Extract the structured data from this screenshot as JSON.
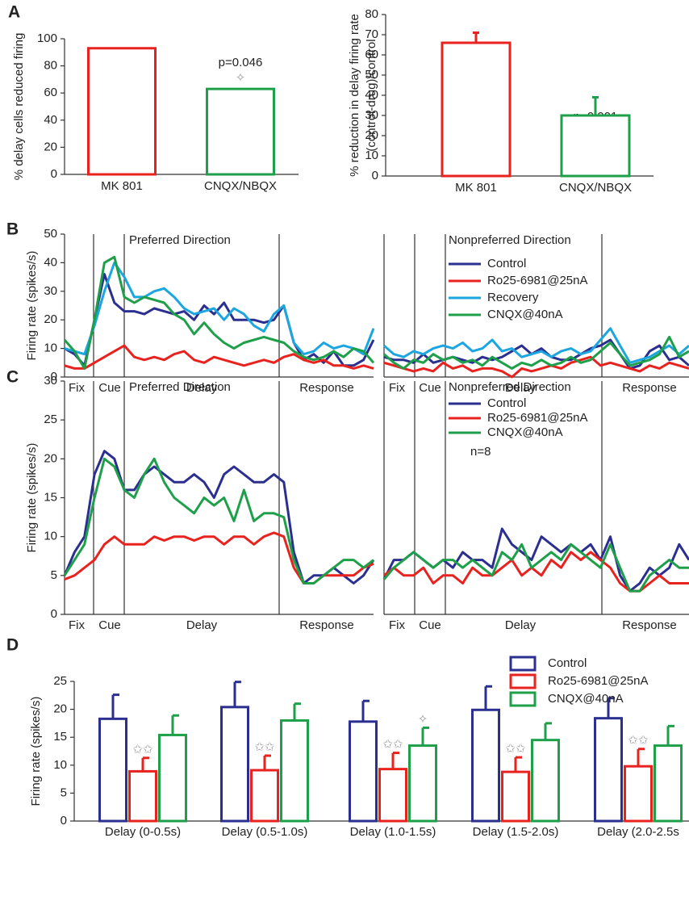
{
  "chart_data": [
    {
      "type": "bar",
      "panel_label": "A",
      "ylabel": [
        "% delay cells reduced firing"
      ],
      "categories": [
        "MK 801",
        "CNQX/NBQX"
      ],
      "values": [
        93,
        63
      ],
      "colors": [
        "#e8221e",
        "#1ea04a"
      ],
      "ylim": [
        0,
        100
      ],
      "yticks": [
        0,
        20,
        40,
        60,
        80,
        100
      ],
      "annotations": [
        "p=0.046",
        "✧"
      ]
    },
    {
      "type": "bar",
      "ylabel": [
        "% reduction in delay firing rate",
        "(control-drug)/control"
      ],
      "categories": [
        "MK 801",
        "CNQX/NBQX"
      ],
      "values": [
        66,
        30
      ],
      "errors": [
        5,
        9
      ],
      "colors": [
        "#e8221e",
        "#1ea04a"
      ],
      "ylim": [
        0,
        80
      ],
      "yticks": [
        0,
        10,
        20,
        30,
        40,
        50,
        60,
        70,
        80
      ],
      "annotations": [
        "p=0.001",
        "✧✧✧"
      ]
    },
    {
      "type": "line",
      "panel_label": "B",
      "title": "Preferred Direction",
      "ylabel": [
        "Firing rate (spikes/s)"
      ],
      "epochs": [
        "Fix",
        "Cue",
        "Delay",
        "Response"
      ],
      "ylim": [
        0,
        50
      ],
      "yticks": [
        0,
        10,
        20,
        30,
        40,
        50
      ],
      "series": [
        {
          "color": "#2b2f8f",
          "values": [
            10,
            8,
            4,
            20,
            36,
            26,
            23,
            23,
            22,
            24,
            23,
            22,
            23,
            20,
            25,
            22,
            26,
            20,
            20,
            20,
            19,
            20,
            25,
            12,
            6,
            8,
            5,
            9,
            4,
            4,
            6,
            13
          ]
        },
        {
          "color": "#e8221e",
          "values": [
            4,
            3,
            3,
            5,
            7,
            9,
            11,
            7,
            6,
            7,
            6,
            8,
            9,
            6,
            5,
            7,
            6,
            5,
            4,
            5,
            6,
            5,
            7,
            8,
            6,
            5,
            6,
            4,
            4,
            3,
            4,
            3
          ]
        },
        {
          "color": "#1ca6e0",
          "values": [
            10,
            9,
            8,
            18,
            30,
            40,
            35,
            28,
            28,
            30,
            31,
            28,
            24,
            22,
            23,
            24,
            20,
            24,
            22,
            18,
            16,
            22,
            25,
            12,
            8,
            9,
            12,
            10,
            11,
            10,
            8,
            17
          ]
        },
        {
          "color": "#1ea04a",
          "values": [
            13,
            9,
            3,
            20,
            40,
            42,
            28,
            26,
            28,
            27,
            26,
            22,
            20,
            15,
            19,
            15,
            12,
            10,
            12,
            13,
            14,
            13,
            12,
            9,
            7,
            6,
            7,
            9,
            7,
            10,
            9,
            5
          ]
        }
      ]
    },
    {
      "type": "line",
      "title": "Nonpreferred Direction",
      "epochs": [
        "Fix",
        "Cue",
        "Delay",
        "Response"
      ],
      "ylim": [
        0,
        50
      ],
      "series": [
        {
          "name": "Control",
          "color": "#2b2f8f",
          "values": [
            7,
            6,
            6,
            5,
            8,
            5,
            6,
            7,
            6,
            5,
            7,
            6,
            7,
            9,
            11,
            8,
            10,
            7,
            6,
            6,
            8,
            10,
            11,
            13,
            8,
            3,
            4,
            9,
            11,
            6,
            7,
            4
          ]
        },
        {
          "name": "Ro25-6981@25nA",
          "color": "#e8221e",
          "values": [
            5,
            4,
            3,
            2,
            3,
            2,
            5,
            3,
            4,
            2,
            3,
            3,
            2,
            0,
            3,
            2,
            3,
            4,
            3,
            5,
            6,
            7,
            4,
            5,
            4,
            3,
            2,
            4,
            3,
            5,
            4,
            3
          ]
        },
        {
          "name": "Recovery",
          "color": "#1ca6e0",
          "values": [
            11,
            8,
            7,
            9,
            8,
            10,
            11,
            10,
            12,
            9,
            10,
            13,
            9,
            10,
            7,
            8,
            9,
            7,
            9,
            10,
            8,
            9,
            13,
            17,
            11,
            5,
            6,
            7,
            9,
            11,
            8,
            11
          ]
        },
        {
          "name": "CNQX@40nA",
          "color": "#1ea04a",
          "values": [
            8,
            5,
            3,
            6,
            5,
            8,
            6,
            7,
            5,
            6,
            4,
            7,
            5,
            3,
            5,
            4,
            6,
            4,
            5,
            7,
            5,
            6,
            9,
            12,
            8,
            4,
            5,
            6,
            8,
            14,
            7,
            9
          ]
        }
      ]
    },
    {
      "type": "line",
      "panel_label": "C",
      "title": "Preferred Direction",
      "ylabel": [
        "Firing rate (spikes/s)"
      ],
      "epochs": [
        "Fix",
        "Cue",
        "Delay",
        "Response"
      ],
      "ylim": [
        0,
        30
      ],
      "yticks": [
        0,
        5,
        10,
        15,
        20,
        25,
        30
      ],
      "series": [
        {
          "color": "#2b2f8f",
          "values": [
            5,
            8,
            10,
            18,
            21,
            20,
            16,
            16,
            18,
            19,
            18,
            17,
            17,
            18,
            17,
            15,
            18,
            19,
            18,
            17,
            17,
            18,
            17,
            8,
            4,
            5,
            5,
            6,
            5,
            4,
            5,
            7
          ]
        },
        {
          "color": "#e8221e",
          "values": [
            4.5,
            5,
            6,
            7,
            9,
            10,
            9,
            9,
            9,
            10,
            9.5,
            10,
            10,
            9.5,
            10,
            10,
            9,
            10,
            10,
            9,
            10,
            10.5,
            10,
            6,
            4,
            4,
            5,
            5,
            5,
            5,
            6,
            6.5
          ]
        },
        {
          "color": "#1ea04a",
          "values": [
            5,
            7,
            9,
            15,
            20,
            19,
            16,
            15,
            18,
            20,
            17,
            15,
            14,
            13,
            15,
            14,
            15,
            12,
            16,
            12,
            13,
            13,
            12.5,
            7,
            4,
            4,
            5,
            6,
            7,
            7,
            6,
            7
          ]
        }
      ]
    },
    {
      "type": "line",
      "title": "Nonpreferred Direction",
      "annotations": [
        "n=8"
      ],
      "epochs": [
        "Fix",
        "Cue",
        "Delay",
        "Response"
      ],
      "ylim": [
        0,
        30
      ],
      "series": [
        {
          "name": "Control",
          "color": "#2b2f8f",
          "values": [
            4.5,
            7,
            7,
            8,
            7,
            6,
            7,
            6,
            8,
            7,
            7,
            6,
            11,
            9,
            8,
            7,
            10,
            9,
            8,
            9,
            8,
            9,
            7,
            10,
            5,
            3,
            4,
            6,
            5,
            6,
            9,
            7
          ]
        },
        {
          "name": "Ro25-6981@25nA",
          "color": "#e8221e",
          "values": [
            5,
            6,
            5,
            5,
            6,
            4,
            5,
            5,
            4,
            6,
            5,
            5,
            6,
            7,
            5,
            6,
            5,
            7,
            6,
            8,
            7,
            8,
            7,
            6,
            4,
            3,
            3,
            4,
            5,
            4,
            4,
            4
          ]
        },
        {
          "name": "CNQX@40nA",
          "color": "#1ea04a",
          "values": [
            4.5,
            6,
            7,
            8,
            7,
            6,
            7,
            7,
            6,
            7,
            6,
            5,
            8,
            7,
            9,
            6,
            7,
            8,
            7,
            9,
            8,
            7,
            6,
            9,
            6,
            3,
            3,
            5,
            6,
            7,
            6,
            6
          ]
        }
      ]
    },
    {
      "type": "grouped_bar",
      "panel_label": "D",
      "ylabel": [
        "Firing rate (spikes/s)"
      ],
      "categories": [
        "Delay (0-0.5s)",
        "Delay  (0.5-1.0s)",
        "Delay (1.0-1.5s)",
        "Delay (1.5-2.0s)",
        "Delay (2.0-2.5s"
      ],
      "ylim": [
        0,
        25
      ],
      "yticks": [
        0,
        5,
        10,
        15,
        20,
        25
      ],
      "series": [
        {
          "name": "Control",
          "color": "#2b2f8f",
          "values": [
            18.3,
            20.4,
            17.8,
            19.9,
            18.4
          ],
          "errors": [
            4.3,
            4.5,
            3.7,
            4.2,
            3.6
          ]
        },
        {
          "name": "Ro25-6981@25nA",
          "color": "#e8221e",
          "values": [
            8.9,
            9.1,
            9.3,
            8.8,
            9.8
          ],
          "errors": [
            2.4,
            2.6,
            2.9,
            2.6,
            3.1
          ],
          "stars": [
            "✩✩",
            "✩✩",
            "✩✩",
            "✩✩",
            "✩✩"
          ]
        },
        {
          "name": "CNQX@40nA",
          "color": "#1ea04a",
          "values": [
            15.4,
            18.0,
            13.5,
            14.5,
            13.5
          ],
          "errors": [
            3.5,
            3.0,
            3.2,
            3.0,
            3.5
          ],
          "stars": [
            null,
            null,
            "✧",
            null,
            null
          ]
        }
      ]
    }
  ]
}
